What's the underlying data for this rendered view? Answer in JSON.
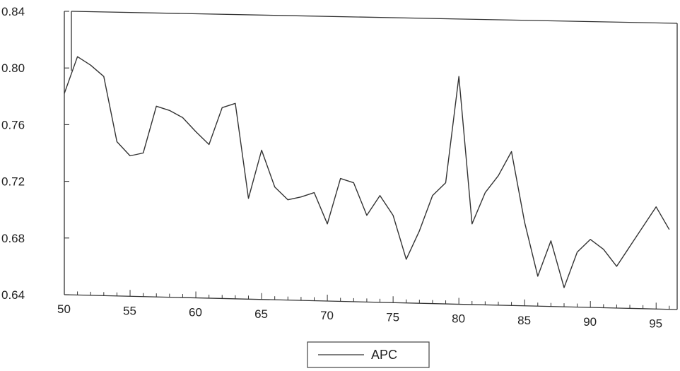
{
  "chart_data": {
    "type": "line",
    "x": [
      50,
      51,
      52,
      53,
      54,
      55,
      56,
      57,
      58,
      59,
      60,
      61,
      62,
      63,
      64,
      65,
      66,
      67,
      68,
      69,
      70,
      71,
      72,
      73,
      74,
      75,
      76,
      77,
      78,
      79,
      80,
      81,
      82,
      83,
      84,
      85,
      86,
      87,
      88,
      89,
      90,
      91,
      92,
      93,
      94,
      95,
      96
    ],
    "series": [
      {
        "name": "APC",
        "values": [
          0.782,
          0.808,
          0.802,
          0.794,
          0.748,
          0.738,
          0.74,
          0.773,
          0.77,
          0.765,
          0.755,
          0.746,
          0.772,
          0.775,
          0.708,
          0.742,
          0.716,
          0.707,
          0.709,
          0.712,
          0.69,
          0.722,
          0.719,
          0.696,
          0.71,
          0.696,
          0.665,
          0.685,
          0.71,
          0.719,
          0.794,
          0.69,
          0.712,
          0.724,
          0.741,
          0.691,
          0.653,
          0.678,
          0.645,
          0.67,
          0.679,
          0.672,
          0.66,
          0.674,
          0.688,
          0.702,
          0.686
        ]
      }
    ],
    "xlim": [
      50,
      96.6
    ],
    "ylim": [
      0.64,
      0.84
    ],
    "yticks": [
      "0.64",
      "0.68",
      "0.72",
      "0.76",
      "0.80",
      "0.84"
    ],
    "xticks": [
      "50",
      "55",
      "60",
      "65",
      "70",
      "75",
      "80",
      "85",
      "90",
      "95"
    ],
    "legend_position": "bottom-center",
    "grid": false,
    "line_color": "#333333"
  }
}
